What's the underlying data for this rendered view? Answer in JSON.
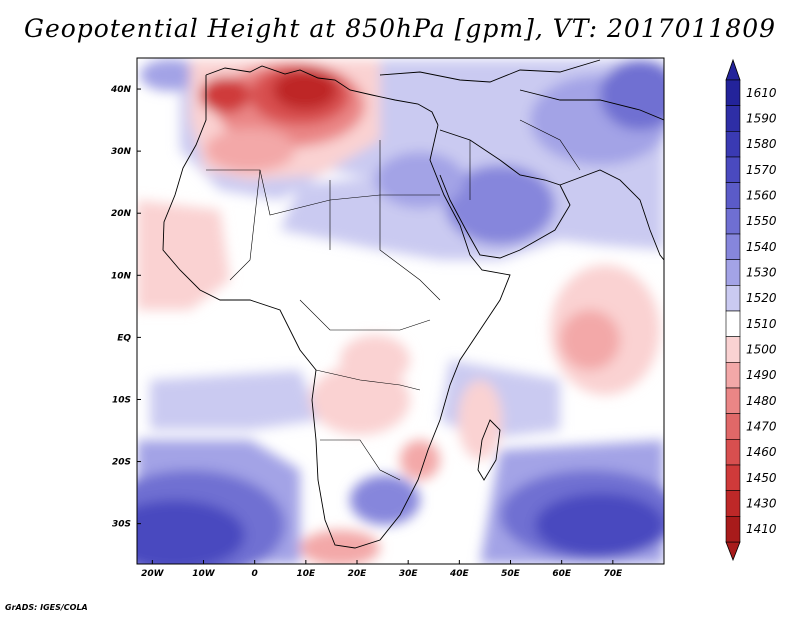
{
  "title": "Geopotential Height at 850hPa [gpm], VT: 2017011809",
  "credit": "GrADS: IGES/COLA",
  "map": {
    "lon_range": [
      -23,
      80
    ],
    "lat_range": [
      -36.5,
      45
    ],
    "lon_ticks": [
      {
        "value": -20,
        "label": "20W"
      },
      {
        "value": -10,
        "label": "10W"
      },
      {
        "value": 0,
        "label": "0"
      },
      {
        "value": 10,
        "label": "10E"
      },
      {
        "value": 20,
        "label": "20E"
      },
      {
        "value": 30,
        "label": "30E"
      },
      {
        "value": 40,
        "label": "40E"
      },
      {
        "value": 50,
        "label": "50E"
      },
      {
        "value": 60,
        "label": "60E"
      },
      {
        "value": 70,
        "label": "70E"
      }
    ],
    "lat_ticks": [
      {
        "value": 40,
        "label": "40N"
      },
      {
        "value": 30,
        "label": "30N"
      },
      {
        "value": 20,
        "label": "20N"
      },
      {
        "value": 10,
        "label": "10N"
      },
      {
        "value": 0,
        "label": "EQ"
      },
      {
        "value": -10,
        "label": "10S"
      },
      {
        "value": -20,
        "label": "20S"
      },
      {
        "value": -30,
        "label": "30S"
      }
    ]
  },
  "colorbar": {
    "levels": [
      {
        "label": "1610",
        "color": "#23239a"
      },
      {
        "label": "1590",
        "color": "#2e2ea6"
      },
      {
        "label": "1580",
        "color": "#3a3ab3"
      },
      {
        "label": "1570",
        "color": "#4a4abf"
      },
      {
        "label": "1560",
        "color": "#5b5bc8"
      },
      {
        "label": "1550",
        "color": "#6f6fd2"
      },
      {
        "label": "1540",
        "color": "#8686dc"
      },
      {
        "label": "1530",
        "color": "#a3a3e6"
      },
      {
        "label": "1520",
        "color": "#cacaf1"
      },
      {
        "label": "1510",
        "color": "#ffffff"
      },
      {
        "label": "1500",
        "color": "#fad2d2"
      },
      {
        "label": "1490",
        "color": "#f3a8a8"
      },
      {
        "label": "1480",
        "color": "#ea8686"
      },
      {
        "label": "1470",
        "color": "#e06868"
      },
      {
        "label": "1460",
        "color": "#d84f4f"
      },
      {
        "label": "1450",
        "color": "#cf3a3a"
      },
      {
        "label": "1430",
        "color": "#be2828"
      },
      {
        "label": "1410",
        "color": "#a81b1b"
      }
    ]
  }
}
